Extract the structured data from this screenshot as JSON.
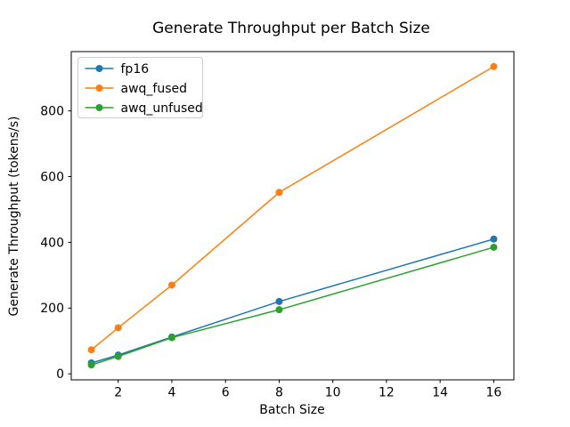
{
  "chart_data": {
    "type": "line",
    "title": "Generate Throughput per Batch Size",
    "xlabel": "Batch Size",
    "ylabel": "Generate Throughput (tokens/s)",
    "x": [
      1,
      2,
      4,
      8,
      16
    ],
    "series": [
      {
        "name": "fp16",
        "color": "#1f77b4",
        "values": [
          33,
          57,
          112,
          220,
          410
        ]
      },
      {
        "name": "awq_fused",
        "color": "#ff7f0e",
        "values": [
          73,
          140,
          270,
          552,
          935
        ]
      },
      {
        "name": "awq_unfused",
        "color": "#2ca02c",
        "values": [
          27,
          53,
          110,
          195,
          385
        ]
      }
    ],
    "x_ticks": [
      2,
      4,
      6,
      8,
      10,
      12,
      14,
      16
    ],
    "y_ticks": [
      0,
      200,
      400,
      600,
      800
    ],
    "xlim": [
      0.25,
      16.75
    ],
    "ylim": [
      -18.4,
      980.4
    ],
    "grid": false,
    "legend_position": "upper-left",
    "marker": "circle",
    "frame_color": "#000000",
    "legend_border_color": "#cccccc"
  }
}
